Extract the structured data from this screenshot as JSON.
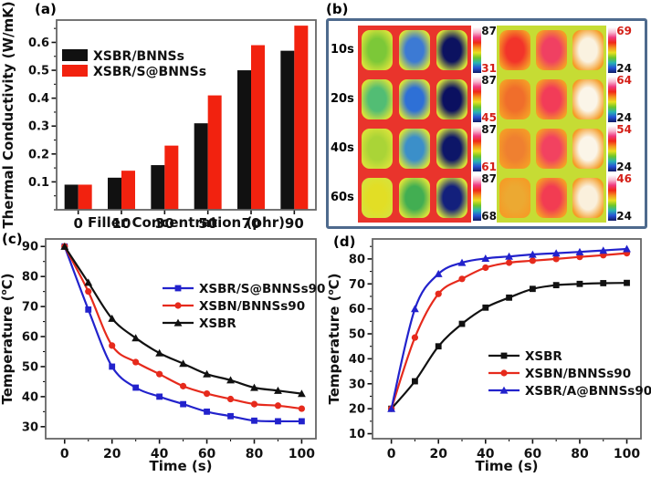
{
  "colors": {
    "black_series": "#111111",
    "red_series": "#e62a1c",
    "red_bar": "#f2220f",
    "blue_series": "#2222cc",
    "panel_b_border": "#4e6a8d",
    "scale_red": "#d42018",
    "scale_black": "#111111",
    "frame": "#666666"
  },
  "panels": {
    "a": {
      "label": "(a)",
      "chart": 0
    },
    "b": {
      "label": "(b)",
      "left": {
        "bg": "#e9342c",
        "halo": "#d8e23a",
        "rows": [
          {
            "time": "10s",
            "squares": [
              "#7cc838",
              "#3c7ad4",
              "#0c1260"
            ],
            "top": "87",
            "top_color": "#111111",
            "bottom": "31",
            "bottom_color": "#d42018"
          },
          {
            "time": "20s",
            "squares": [
              "#52bd74",
              "#2e70d6",
              "#0b1060"
            ],
            "top": "87",
            "top_color": "#111111",
            "bottom": "45",
            "bottom_color": "#d42018"
          },
          {
            "time": "40s",
            "squares": [
              "#aad437",
              "#3b8fc9",
              "#0d1668"
            ],
            "top": "87",
            "top_color": "#111111",
            "bottom": "61",
            "bottom_color": "#d42018"
          },
          {
            "time": "60s",
            "squares": [
              "#e2de25",
              "#42ae52",
              "#13207c"
            ],
            "top": "87",
            "top_color": "#111111",
            "bottom": "68",
            "bottom_color": "#111111"
          }
        ]
      },
      "right": {
        "bg": "#c6dc34",
        "halo": "#f59c26",
        "rows": [
          {
            "squares": [
              "#f2342a",
              "#f04062",
              "#faf2e0"
            ],
            "top": "69",
            "top_color": "#d42018",
            "bottom": "24",
            "bottom_color": "#111111"
          },
          {
            "squares": [
              "#f06e2b",
              "#f23c58",
              "#fbf5e8"
            ],
            "top": "64",
            "top_color": "#d42018",
            "bottom": "24",
            "bottom_color": "#111111"
          },
          {
            "squares": [
              "#ef8030",
              "#f24260",
              "#fbf5e8"
            ],
            "top": "54",
            "top_color": "#d42018",
            "bottom": "24",
            "bottom_color": "#111111"
          },
          {
            "squares": [
              "#eca932",
              "#f23c52",
              "#faf0dc"
            ],
            "top": "46",
            "top_color": "#d42018",
            "bottom": "24",
            "bottom_color": "#111111"
          }
        ]
      },
      "colorbar_gradient": [
        "#ffffff",
        "#f8b8d0",
        "#f03a80",
        "#f02818",
        "#f58e1e",
        "#e8e020",
        "#6ec62a",
        "#28b4b4",
        "#2652d4",
        "#0e1a64"
      ]
    },
    "c": {
      "label": "(c)",
      "chart": 1
    },
    "d": {
      "label": "(d)",
      "chart": 2
    }
  },
  "chart_data": [
    {
      "panel": "a",
      "type": "bar",
      "title": "",
      "categories": [
        "0",
        "10",
        "30",
        "50",
        "70",
        "90"
      ],
      "series": [
        {
          "name": "XSBR/BNNSs",
          "color": "#111111",
          "values": [
            0.09,
            0.115,
            0.16,
            0.31,
            0.5,
            0.57
          ]
        },
        {
          "name": "XSBR/S@BNNSs",
          "color": "#f2220f",
          "values": [
            0.09,
            0.14,
            0.23,
            0.41,
            0.59,
            0.66
          ]
        }
      ],
      "xlabel": "Filler Concentration (phr)",
      "ylabel": "Thermal Conductivity (W/mK)",
      "ylim": [
        0,
        0.68
      ],
      "yticks": [
        0.1,
        0.2,
        0.3,
        0.4,
        0.5,
        0.6
      ],
      "ytick_labels": [
        "0.1",
        "0.2",
        "0.3",
        "0.4",
        "0.5",
        "0.6"
      ],
      "y_minor_step": 0.05,
      "grid": false,
      "legend_position": "upper-left",
      "legend_xy": [
        68,
        54
      ],
      "legend_rowh": 17
    },
    {
      "panel": "c",
      "type": "line",
      "title": "",
      "x": [
        0,
        10,
        20,
        30,
        40,
        50,
        60,
        70,
        80,
        90,
        100
      ],
      "series": [
        {
          "name": "XSBR/S@BNNSs90",
          "color": "#2222cc",
          "marker": "square",
          "values": [
            90,
            69,
            50,
            43,
            40,
            37.5,
            35,
            33.5,
            32,
            31.8,
            31.8
          ]
        },
        {
          "name": "XSBN/BNNSs90",
          "color": "#e62a1c",
          "marker": "circle",
          "values": [
            90,
            75,
            57,
            51.5,
            47.5,
            43.5,
            41,
            39.2,
            37.5,
            37,
            36
          ]
        },
        {
          "name": "XSBR",
          "color": "#111111",
          "marker": "triangle",
          "values": [
            90,
            78,
            66,
            59.5,
            54.5,
            51,
            47.5,
            45.5,
            43,
            42,
            41
          ]
        }
      ],
      "xlabel": "Time (s)",
      "ylabel": "Temperature (°C)",
      "xlim": [
        -8,
        106
      ],
      "ylim": [
        26,
        92.5
      ],
      "xticks": [
        0,
        20,
        40,
        60,
        80,
        100
      ],
      "xtick_labels": [
        "0",
        "20",
        "40",
        "60",
        "80",
        "100"
      ],
      "yticks": [
        30,
        40,
        50,
        60,
        70,
        80,
        90
      ],
      "ytick_labels": [
        "30",
        "40",
        "50",
        "60",
        "70",
        "80",
        "90"
      ],
      "x_minor_step": 10,
      "y_minor_step": 5,
      "grid": false,
      "legend_position": "middle-right",
      "legend_xy": [
        178,
        66
      ],
      "legend_rowh": 19
    },
    {
      "panel": "d",
      "type": "line",
      "title": "",
      "x": [
        0,
        10,
        20,
        30,
        40,
        50,
        60,
        70,
        80,
        90,
        100
      ],
      "series": [
        {
          "name": "XSBR",
          "color": "#111111",
          "marker": "square",
          "values": [
            20,
            31,
            45,
            54,
            60.5,
            64.5,
            68,
            69.5,
            70,
            70.3,
            70.4
          ]
        },
        {
          "name": "XSBN/BNNSs90",
          "color": "#e62a1c",
          "marker": "circle",
          "values": [
            20,
            48.5,
            66,
            72,
            76.5,
            78.5,
            79.3,
            80,
            80.8,
            81.5,
            82.3
          ]
        },
        {
          "name": "XSBR/A@BNNSs90",
          "color": "#2222cc",
          "marker": "triangle",
          "values": [
            20,
            60,
            74,
            78.5,
            80.2,
            81,
            81.8,
            82.3,
            82.8,
            83.4,
            84
          ]
        }
      ],
      "xlabel": "Time (s)",
      "ylabel": "Temperature (°C)",
      "xlim": [
        -8,
        106
      ],
      "ylim": [
        8,
        88
      ],
      "xticks": [
        0,
        20,
        40,
        60,
        80,
        100
      ],
      "xtick_labels": [
        "0",
        "20",
        "40",
        "60",
        "80",
        "100"
      ],
      "yticks": [
        10,
        20,
        30,
        40,
        50,
        60,
        70,
        80
      ],
      "ytick_labels": [
        "10",
        "20",
        "30",
        "40",
        "50",
        "60",
        "70",
        "80"
      ],
      "x_minor_step": 10,
      "y_minor_step": 5,
      "grid": false,
      "legend_position": "lower-right",
      "legend_xy": [
        180,
        140
      ],
      "legend_rowh": 19
    }
  ]
}
